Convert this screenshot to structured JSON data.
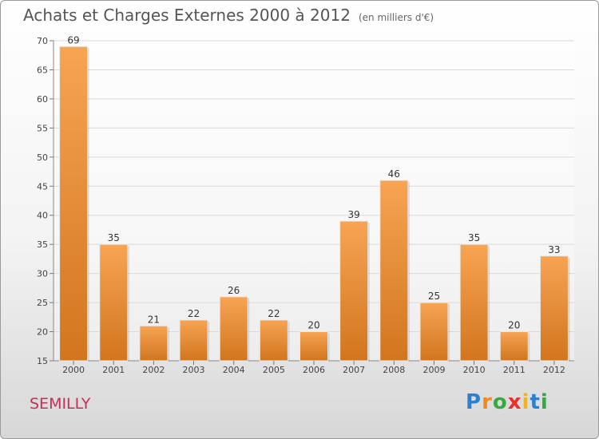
{
  "chart_data": {
    "type": "bar",
    "title": "Achats et Charges Externes 2000 à 2012",
    "subtitle": "(en milliers d'€)",
    "categories": [
      "2000",
      "2001",
      "2002",
      "2003",
      "2004",
      "2005",
      "2006",
      "2007",
      "2008",
      "2009",
      "2010",
      "2011",
      "2012"
    ],
    "values": [
      69,
      35,
      21,
      22,
      26,
      22,
      20,
      39,
      46,
      25,
      35,
      20,
      33
    ],
    "ylim": [
      15,
      70
    ],
    "yticks": [
      15,
      20,
      25,
      30,
      35,
      40,
      45,
      50,
      55,
      60,
      65,
      70
    ],
    "grid": true,
    "bar_color_top": "#f7a453",
    "bar_color_bottom": "#d2751e"
  },
  "location": "SEMILLY",
  "brand": {
    "letters": [
      "P",
      "r",
      "o",
      "x",
      "i",
      "t",
      "i"
    ],
    "colors": [
      "#2f7fd0",
      "#f08a1c",
      "#37a843",
      "#e8312a",
      "#f2b21c",
      "#2f7fd0",
      "#37a843"
    ]
  }
}
